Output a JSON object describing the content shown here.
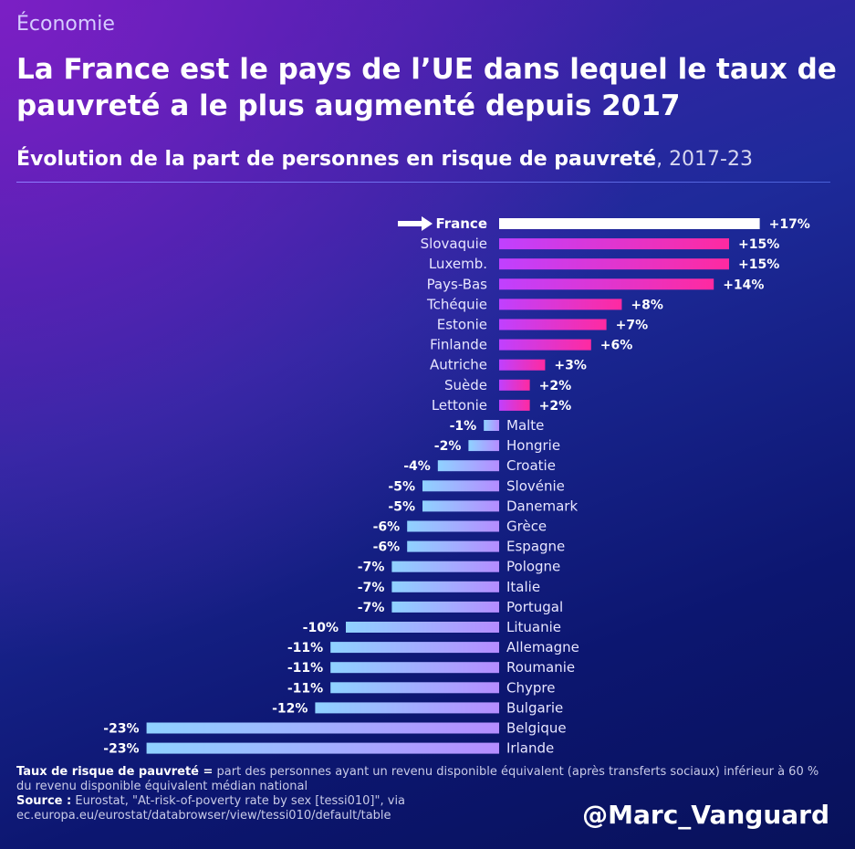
{
  "header": {
    "kicker": "Économie",
    "title": "La France est le pays de l’UE dans lequel le taux de pauvreté a le plus augmenté depuis 2017",
    "subtitle_main": "Évolution de la part de personnes en risque de pauvreté",
    "subtitle_period": ", 2017-23"
  },
  "chart_data": {
    "type": "bar",
    "orientation": "horizontal",
    "categories": [
      "France",
      "Slovaquie",
      "Luxemb.",
      "Pays-Bas",
      "Tchéquie",
      "Estonie",
      "Finlande",
      "Autriche",
      "Suède",
      "Lettonie",
      "Malte",
      "Hongrie",
      "Croatie",
      "Slovénie",
      "Danemark",
      "Grèce",
      "Espagne",
      "Pologne",
      "Italie",
      "Portugal",
      "Lituanie",
      "Allemagne",
      "Roumanie",
      "Chypre",
      "Bulgarie",
      "Belgique",
      "Irlande"
    ],
    "values": [
      17,
      15,
      15,
      14,
      8,
      7,
      6,
      3,
      2,
      2,
      -1,
      -2,
      -4,
      -5,
      -5,
      -6,
      -6,
      -7,
      -7,
      -7,
      -10,
      -11,
      -11,
      -11,
      -12,
      -23,
      -23
    ],
    "labels": [
      "+17%",
      "+15%",
      "+15%",
      "+14%",
      "+8%",
      "+7%",
      "+6%",
      "+3%",
      "+2%",
      "+2%",
      "-1%",
      "-2%",
      "-4%",
      "-5%",
      "-5%",
      "-6%",
      "-6%",
      "-7%",
      "-7%",
      "-7%",
      "-10%",
      "-11%",
      "-11%",
      "-11%",
      "-12%",
      "-23%",
      "-23%"
    ],
    "highlight": "France",
    "colors": {
      "highlight": "#ffffff",
      "positive": [
        "#c040ff",
        "#ff2aa0"
      ],
      "negative": [
        "#8fd2ff",
        "#b58cff"
      ]
    }
  },
  "footer": {
    "def_term": "Taux de risque de pauvreté =",
    "def_text": " part des personnes ayant un revenu disponible équivalent (après transferts sociaux) inférieur à 60 % du revenu disponible équivalent médian national",
    "source_term": "Source :",
    "source_text": " Eurostat, \"At-risk-of-poverty rate by sex [tessi010]\", via ec.europa.eu/eurostat/databrowser/view/tessi010/default/table",
    "handle": "@Marc_Vanguard"
  }
}
